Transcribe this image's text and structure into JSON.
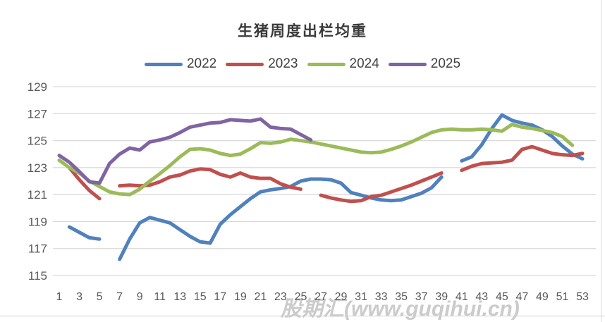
{
  "chart_data": {
    "type": "line",
    "title": "生猪周度出栏均重",
    "xlabel": "",
    "ylabel": "",
    "xlim": [
      1,
      53
    ],
    "ylim": [
      115,
      129
    ],
    "x_ticks": [
      1,
      3,
      5,
      7,
      9,
      11,
      13,
      15,
      17,
      19,
      21,
      23,
      25,
      27,
      29,
      31,
      33,
      35,
      37,
      39,
      41,
      43,
      45,
      47,
      49,
      51,
      53
    ],
    "y_ticks": [
      115,
      117,
      119,
      121,
      123,
      125,
      127,
      129
    ],
    "grid": "horizontal",
    "legend_position": "top",
    "grid_color": "#d9d9d9",
    "axis_color": "#595959",
    "title_color": "#3a3a3a",
    "legend_text_color": "#404040",
    "series": [
      {
        "name": "2022",
        "color": "#4f81bd",
        "values": [
          null,
          118.6,
          118.2,
          117.8,
          117.7,
          null,
          116.2,
          117.7,
          118.9,
          119.3,
          119.1,
          118.9,
          118.4,
          117.9,
          117.5,
          117.4,
          118.8,
          119.5,
          120.1,
          120.7,
          121.2,
          121.35,
          121.45,
          121.6,
          122.0,
          122.15,
          122.15,
          122.1,
          121.85,
          121.15,
          120.95,
          120.75,
          120.6,
          120.55,
          120.6,
          120.85,
          121.1,
          121.5,
          122.3,
          null,
          123.5,
          123.8,
          124.7,
          125.9,
          126.9,
          126.5,
          126.3,
          126.15,
          125.8,
          125.3,
          124.6,
          124.0,
          123.65
        ]
      },
      {
        "name": "2023",
        "color": "#c0504d",
        "values": [
          null,
          123.0,
          122.1,
          121.3,
          120.7,
          null,
          121.65,
          121.7,
          121.65,
          121.7,
          121.95,
          122.3,
          122.45,
          122.75,
          122.9,
          122.85,
          122.5,
          122.3,
          122.6,
          122.3,
          122.2,
          122.2,
          121.8,
          121.55,
          121.4,
          null,
          120.95,
          120.75,
          120.6,
          120.5,
          120.55,
          120.85,
          120.95,
          121.2,
          121.45,
          121.7,
          122.0,
          122.3,
          122.6,
          null,
          122.8,
          123.1,
          123.3,
          123.35,
          123.4,
          123.55,
          124.35,
          124.55,
          124.3,
          124.05,
          123.95,
          123.9,
          124.05
        ]
      },
      {
        "name": "2024",
        "color": "#9bbb59",
        "values": [
          123.55,
          123.0,
          122.6,
          122.0,
          121.6,
          121.2,
          121.05,
          121.0,
          121.4,
          122.0,
          122.55,
          123.15,
          123.8,
          124.35,
          124.4,
          124.3,
          124.05,
          123.9,
          124.0,
          124.4,
          124.85,
          124.8,
          124.9,
          125.1,
          125.0,
          124.9,
          124.75,
          124.6,
          124.45,
          124.3,
          124.15,
          124.1,
          124.15,
          124.35,
          124.6,
          124.9,
          125.25,
          125.6,
          125.8,
          125.85,
          125.8,
          125.8,
          125.85,
          125.8,
          125.7,
          126.2,
          126.0,
          125.9,
          125.75,
          125.6,
          125.3,
          124.65,
          null
        ]
      },
      {
        "name": "2025",
        "color": "#8064a2",
        "values": [
          123.9,
          123.4,
          122.7,
          121.95,
          121.85,
          123.3,
          124.0,
          124.45,
          124.3,
          124.9,
          125.05,
          125.25,
          125.6,
          126.0,
          126.15,
          126.3,
          126.35,
          126.55,
          126.5,
          126.45,
          126.6,
          126.0,
          125.9,
          125.85,
          125.45,
          125.05,
          null,
          null,
          null,
          null,
          null,
          null,
          null,
          null,
          null,
          null,
          null,
          null,
          null,
          null,
          null,
          null,
          null,
          null,
          null,
          null,
          null,
          null,
          null,
          null,
          null,
          null,
          null
        ]
      }
    ]
  },
  "watermark": {
    "text": "股期汇(www.guqihui.cn)"
  }
}
